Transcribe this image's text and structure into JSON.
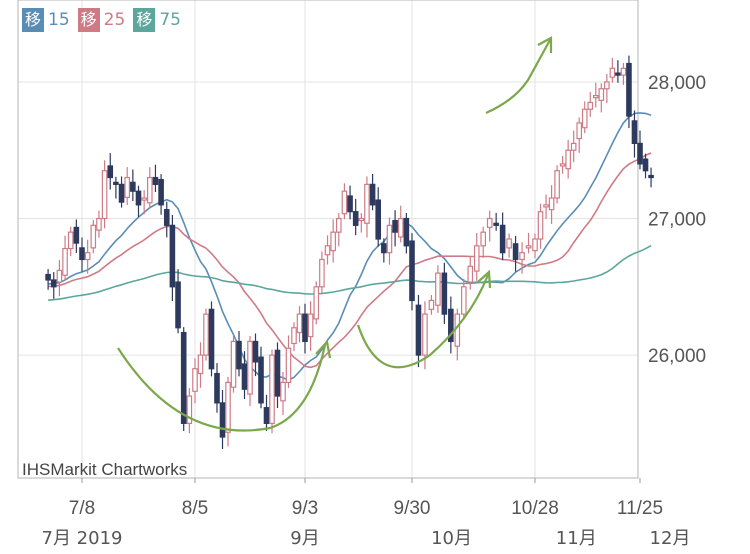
{
  "legend": [
    {
      "tag": "移",
      "value": "15",
      "color": "#5a8db5"
    },
    {
      "tag": "移",
      "value": "25",
      "color": "#cf7b86"
    },
    {
      "tag": "移",
      "value": "75",
      "color": "#5ba79d"
    }
  ],
  "watermark": "IHSMarkit Chartworks",
  "chart_data": {
    "type": "candlestick",
    "ylim": [
      25100,
      28600
    ],
    "y_ticks": [
      {
        "value": 26000,
        "label": "26,000"
      },
      {
        "value": 27000,
        "label": "27,000"
      },
      {
        "value": 28000,
        "label": "28,000"
      }
    ],
    "x_ticks": [
      {
        "date": "2019-07-08",
        "label": "7/8"
      },
      {
        "date": "2019-08-05",
        "label": "8/5"
      },
      {
        "date": "2019-09-03",
        "label": "9/3"
      },
      {
        "date": "2019-09-30",
        "label": "9/30"
      },
      {
        "date": "2019-10-28",
        "label": "10/28"
      },
      {
        "date": "2019-11-25",
        "label": "11/25"
      }
    ],
    "month_labels": [
      {
        "date": "2019-07-08",
        "label": "7月 2019"
      },
      {
        "date": "2019-09-03",
        "label": "9月"
      },
      {
        "date": "2019-10-09",
        "label": "10月"
      },
      {
        "date": "2019-11-08",
        "label": "11月"
      },
      {
        "date": "2019-12-03",
        "label": "12月"
      }
    ],
    "closes": [
      26550,
      26500,
      26620,
      26780,
      26900,
      26820,
      26700,
      26750,
      26950,
      27000,
      27350,
      27300,
      27250,
      27120,
      27300,
      27200,
      27100,
      27150,
      27300,
      27250,
      27100,
      26950,
      26500,
      26200,
      25500,
      25700,
      25900,
      26000,
      26300,
      25900,
      25650,
      25400,
      25800,
      26100,
      25900,
      25750,
      26100,
      25950,
      25650,
      25500,
      26000,
      25700,
      25800,
      26050,
      26200,
      26300,
      26100,
      26300,
      26500,
      26700,
      26800,
      26900,
      27000,
      27200,
      27050,
      26950,
      27000,
      27250,
      27100,
      26850,
      26750,
      26950,
      26900,
      27000,
      26800,
      26400,
      26000,
      26300,
      26400,
      26600,
      26300,
      26100,
      26300,
      26500,
      26650,
      26800,
      26900,
      27000,
      26950,
      26750,
      26850,
      26700,
      26750,
      26800,
      26850,
      27050,
      27100,
      27150,
      27350,
      27400,
      27500,
      27550,
      27700,
      27800,
      27850,
      27900,
      27950,
      28000,
      28100,
      28050,
      28100,
      27750,
      27550,
      27400,
      27350,
      27300
    ]
  }
}
